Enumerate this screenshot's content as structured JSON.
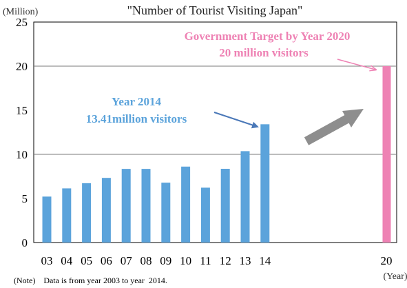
{
  "chart_data": {
    "type": "bar",
    "title": "\"Number of Tourist Visiting Japan\"",
    "y_unit": "(Million)",
    "x_unit": "(Year)",
    "ylim": [
      0,
      25
    ],
    "yticks": [
      "0",
      "5",
      "10",
      "15",
      "20",
      "25"
    ],
    "gridlines": [
      10,
      20
    ],
    "categories": [
      "03",
      "04",
      "05",
      "06",
      "07",
      "08",
      "09",
      "10",
      "11",
      "12",
      "13",
      "14"
    ],
    "values": [
      5.21,
      6.14,
      6.73,
      7.33,
      8.35,
      8.35,
      6.79,
      8.61,
      6.22,
      8.36,
      10.36,
      13.41
    ],
    "bar_color": "#5ba3db",
    "target": {
      "category": "20",
      "value": 20,
      "color": "#ee82b4"
    },
    "annotations": {
      "year2014_line1": "Year 2014",
      "year2014_line2": "13.41million visitors",
      "target_line1": "Government Target by Year 2020",
      "target_line2": "20 million  visitors"
    },
    "note": "(Note)    Data is from year 2003 to year  2014."
  }
}
